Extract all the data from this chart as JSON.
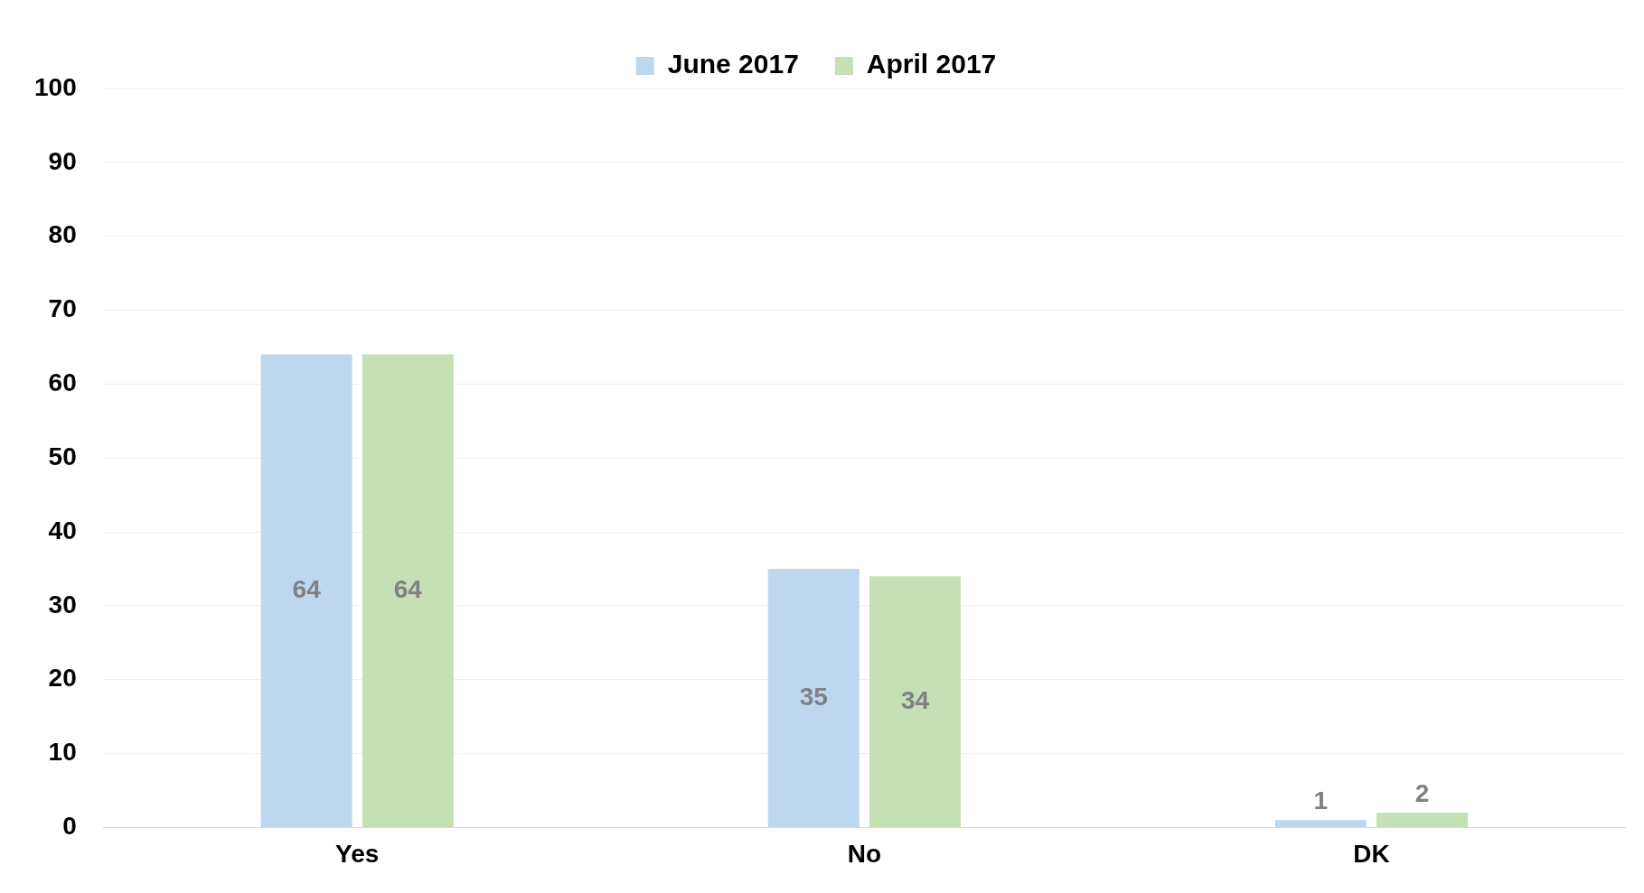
{
  "chart_data": {
    "type": "bar",
    "categories": [
      "Yes",
      "No",
      "DK"
    ],
    "series": [
      {
        "name": "June 2017",
        "color": "#bdd7ee",
        "values": [
          64,
          35,
          1
        ]
      },
      {
        "name": "April 2017",
        "color": "#c5e0b4",
        "values": [
          64,
          34,
          2
        ]
      }
    ],
    "ylim": [
      0,
      100
    ],
    "yticks": [
      0,
      10,
      20,
      30,
      40,
      50,
      60,
      70,
      80,
      90,
      100
    ],
    "grid": "y",
    "legend": "top",
    "data_labels": true
  }
}
